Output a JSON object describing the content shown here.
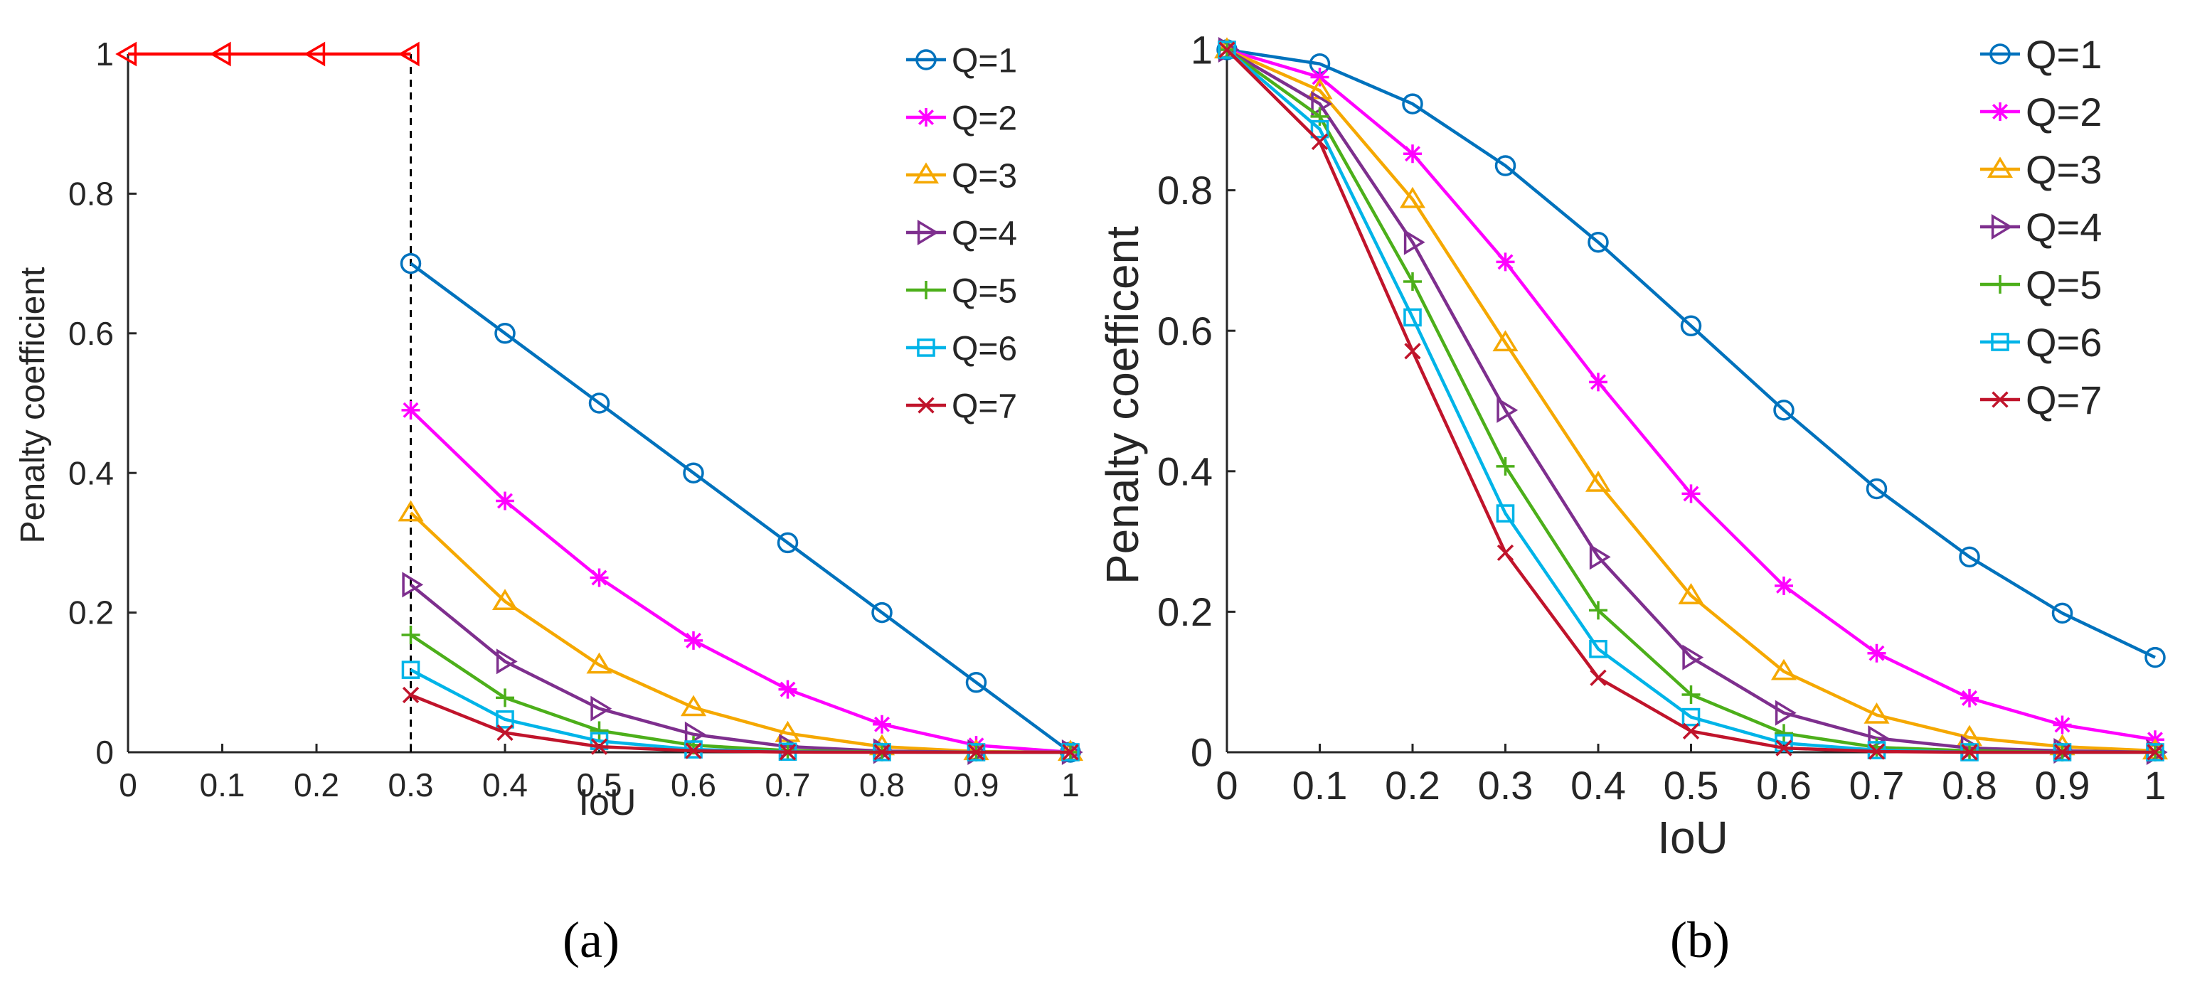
{
  "chart_data": [
    {
      "type": "line",
      "panel_label": "(a)",
      "xlabel": "IoU",
      "ylabel": "Penalty coefficient",
      "xlim": [
        0,
        1
      ],
      "ylim": [
        0,
        1
      ],
      "xticks": [
        "0",
        "0.1",
        "0.2",
        "0.3",
        "0.4",
        "0.5",
        "0.6",
        "0.7",
        "0.8",
        "0.9",
        "1"
      ],
      "yticks": [
        "0",
        "0.2",
        "0.4",
        "0.6",
        "0.8",
        "1"
      ],
      "threshold_line": {
        "x": 0.3,
        "style": "dashed",
        "color": "#000000"
      },
      "unlabeled_series": [
        {
          "name": "low-IoU constant",
          "color": "#ff0000",
          "marker": "triangle-left",
          "x": [
            0,
            0.1,
            0.2,
            0.3
          ],
          "y": [
            1,
            1,
            1,
            1
          ]
        }
      ],
      "series": [
        {
          "name": "Q=1",
          "color": "#0072bd",
          "marker": "circle",
          "x": [
            0.3,
            0.4,
            0.5,
            0.6,
            0.7,
            0.8,
            0.9,
            1
          ],
          "y": [
            0.7,
            0.6,
            0.5,
            0.4,
            0.3,
            0.2,
            0.1,
            0
          ]
        },
        {
          "name": "Q=2",
          "color": "#ff00ff",
          "marker": "asterisk",
          "x": [
            0.3,
            0.4,
            0.5,
            0.6,
            0.7,
            0.8,
            0.9,
            1
          ],
          "y": [
            0.49,
            0.36,
            0.25,
            0.16,
            0.09,
            0.04,
            0.01,
            0
          ]
        },
        {
          "name": "Q=3",
          "color": "#f5a800",
          "marker": "triangle-up",
          "x": [
            0.3,
            0.4,
            0.5,
            0.6,
            0.7,
            0.8,
            0.9,
            1
          ],
          "y": [
            0.343,
            0.216,
            0.125,
            0.064,
            0.027,
            0.008,
            0.001,
            0
          ]
        },
        {
          "name": "Q=4",
          "color": "#7e2f8e",
          "marker": "triangle-right",
          "x": [
            0.3,
            0.4,
            0.5,
            0.6,
            0.7,
            0.8,
            0.9,
            1
          ],
          "y": [
            0.24,
            0.13,
            0.0625,
            0.0256,
            0.0081,
            0.0016,
            0.0001,
            0
          ]
        },
        {
          "name": "Q=5",
          "color": "#4caf1a",
          "marker": "plus",
          "x": [
            0.3,
            0.4,
            0.5,
            0.6,
            0.7,
            0.8,
            0.9,
            1
          ],
          "y": [
            0.168,
            0.078,
            0.031,
            0.01,
            0.0024,
            0.0003,
            0,
            0
          ]
        },
        {
          "name": "Q=6",
          "color": "#00b4e8",
          "marker": "square",
          "x": [
            0.3,
            0.4,
            0.5,
            0.6,
            0.7,
            0.8,
            0.9,
            1
          ],
          "y": [
            0.118,
            0.047,
            0.016,
            0.004,
            0.0007,
            0.0001,
            0,
            0
          ]
        },
        {
          "name": "Q=7",
          "color": "#c0142b",
          "marker": "x",
          "x": [
            0.3,
            0.4,
            0.5,
            0.6,
            0.7,
            0.8,
            0.9,
            1
          ],
          "y": [
            0.082,
            0.028,
            0.008,
            0.002,
            0.0002,
            0,
            0,
            0
          ]
        }
      ]
    },
    {
      "type": "line",
      "panel_label": "(b)",
      "xlabel": "IoU",
      "ylabel": "Penalty coefficent",
      "xlim": [
        0,
        1
      ],
      "ylim": [
        0,
        1
      ],
      "xticks": [
        "0",
        "0.1",
        "0.2",
        "0.3",
        "0.4",
        "0.5",
        "0.6",
        "0.7",
        "0.8",
        "0.9",
        "1"
      ],
      "yticks": [
        "0",
        "0.2",
        "0.4",
        "0.6",
        "0.8",
        "1"
      ],
      "series": [
        {
          "name": "Q=1",
          "color": "#0072bd",
          "marker": "circle",
          "x": [
            0,
            0.1,
            0.2,
            0.3,
            0.4,
            0.5,
            0.6,
            0.7,
            0.8,
            0.9,
            1
          ],
          "y": [
            1,
            0.98,
            0.923,
            0.835,
            0.726,
            0.607,
            0.487,
            0.375,
            0.278,
            0.198,
            0.135
          ]
        },
        {
          "name": "Q=2",
          "color": "#ff00ff",
          "marker": "asterisk",
          "x": [
            0,
            0.1,
            0.2,
            0.3,
            0.4,
            0.5,
            0.6,
            0.7,
            0.8,
            0.9,
            1
          ],
          "y": [
            1,
            0.961,
            0.852,
            0.698,
            0.527,
            0.368,
            0.237,
            0.141,
            0.077,
            0.039,
            0.018
          ]
        },
        {
          "name": "Q=3",
          "color": "#f5a800",
          "marker": "triangle-up",
          "x": [
            0,
            0.1,
            0.2,
            0.3,
            0.4,
            0.5,
            0.6,
            0.7,
            0.8,
            0.9,
            1
          ],
          "y": [
            1,
            0.942,
            0.787,
            0.583,
            0.383,
            0.223,
            0.115,
            0.053,
            0.021,
            0.008,
            0.002
          ]
        },
        {
          "name": "Q=4",
          "color": "#7e2f8e",
          "marker": "triangle-right",
          "x": [
            0,
            0.1,
            0.2,
            0.3,
            0.4,
            0.5,
            0.6,
            0.7,
            0.8,
            0.9,
            1
          ],
          "y": [
            1,
            0.923,
            0.726,
            0.487,
            0.278,
            0.135,
            0.056,
            0.02,
            0.006,
            0.002,
            0
          ]
        },
        {
          "name": "Q=5",
          "color": "#4caf1a",
          "marker": "plus",
          "x": [
            0,
            0.1,
            0.2,
            0.3,
            0.4,
            0.5,
            0.6,
            0.7,
            0.8,
            0.9,
            1
          ],
          "y": [
            1,
            0.905,
            0.67,
            0.407,
            0.202,
            0.082,
            0.027,
            0.007,
            0.002,
            0,
            0
          ]
        },
        {
          "name": "Q=6",
          "color": "#00b4e8",
          "marker": "square",
          "x": [
            0,
            0.1,
            0.2,
            0.3,
            0.4,
            0.5,
            0.6,
            0.7,
            0.8,
            0.9,
            1
          ],
          "y": [
            1,
            0.887,
            0.619,
            0.34,
            0.147,
            0.05,
            0.013,
            0.003,
            0,
            0,
            0
          ]
        },
        {
          "name": "Q=7",
          "color": "#c0142b",
          "marker": "x",
          "x": [
            0,
            0.1,
            0.2,
            0.3,
            0.4,
            0.5,
            0.6,
            0.7,
            0.8,
            0.9,
            1
          ],
          "y": [
            1,
            0.869,
            0.571,
            0.284,
            0.106,
            0.03,
            0.006,
            0.001,
            0,
            0,
            0
          ]
        }
      ]
    }
  ]
}
